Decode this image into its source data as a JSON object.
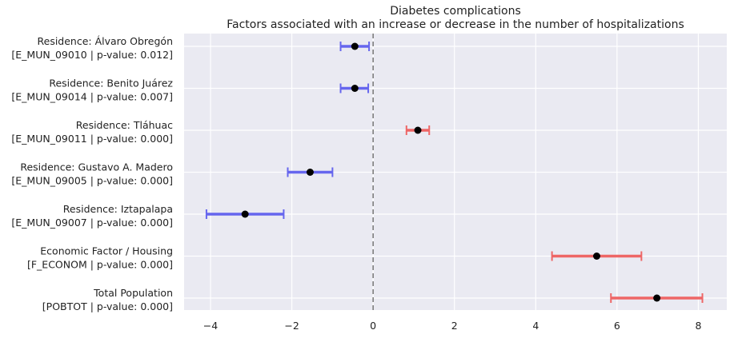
{
  "chart_data": {
    "type": "forest",
    "title": "Diabetes complications",
    "subtitle": "Factors associated with an increase or decrease in the number of hospitalizations",
    "xlabel": "",
    "ylabel": "",
    "xlim": [
      -4.65,
      8.7
    ],
    "xticks": [
      -4,
      -2,
      0,
      2,
      4,
      6,
      8
    ],
    "xtick_labels": [
      "−4",
      "−2",
      "0",
      "2",
      "4",
      "6",
      "8"
    ],
    "reference_line": 0,
    "grid": true,
    "colors": {
      "negative": "#6666ee",
      "positive": "#ee6666",
      "point": "#000000",
      "background": "#eaeaf2",
      "reference": "#777777"
    },
    "rows": [
      {
        "label1": "Residence: Álvaro Obregón",
        "label2": "[E_MUN_09010 | p-value: 0.012]",
        "estimate": -0.45,
        "ci_low": -0.8,
        "ci_high": -0.1
      },
      {
        "label1": "Residence: Benito Juárez",
        "label2": "[E_MUN_09014 | p-value: 0.007]",
        "estimate": -0.45,
        "ci_low": -0.8,
        "ci_high": -0.12
      },
      {
        "label1": "Residence: Tláhuac",
        "label2": "[E_MUN_09011 | p-value: 0.000]",
        "estimate": 1.1,
        "ci_low": 0.82,
        "ci_high": 1.38
      },
      {
        "label1": "Residence: Gustavo A. Madero",
        "label2": "[E_MUN_09005 | p-value: 0.000]",
        "estimate": -1.55,
        "ci_low": -2.1,
        "ci_high": -1.0
      },
      {
        "label1": "Residence: Iztapalapa",
        "label2": "[E_MUN_09007 | p-value: 0.000]",
        "estimate": -3.15,
        "ci_low": -4.1,
        "ci_high": -2.2
      },
      {
        "label1": "Economic Factor / Housing",
        "label2": "[F_ECONOM | p-value: 0.000]",
        "estimate": 5.5,
        "ci_low": 4.4,
        "ci_high": 6.6
      },
      {
        "label1": "Total Population",
        "label2": "[POBTOT | p-value: 0.000]",
        "estimate": 6.98,
        "ci_low": 5.85,
        "ci_high": 8.1
      }
    ]
  }
}
